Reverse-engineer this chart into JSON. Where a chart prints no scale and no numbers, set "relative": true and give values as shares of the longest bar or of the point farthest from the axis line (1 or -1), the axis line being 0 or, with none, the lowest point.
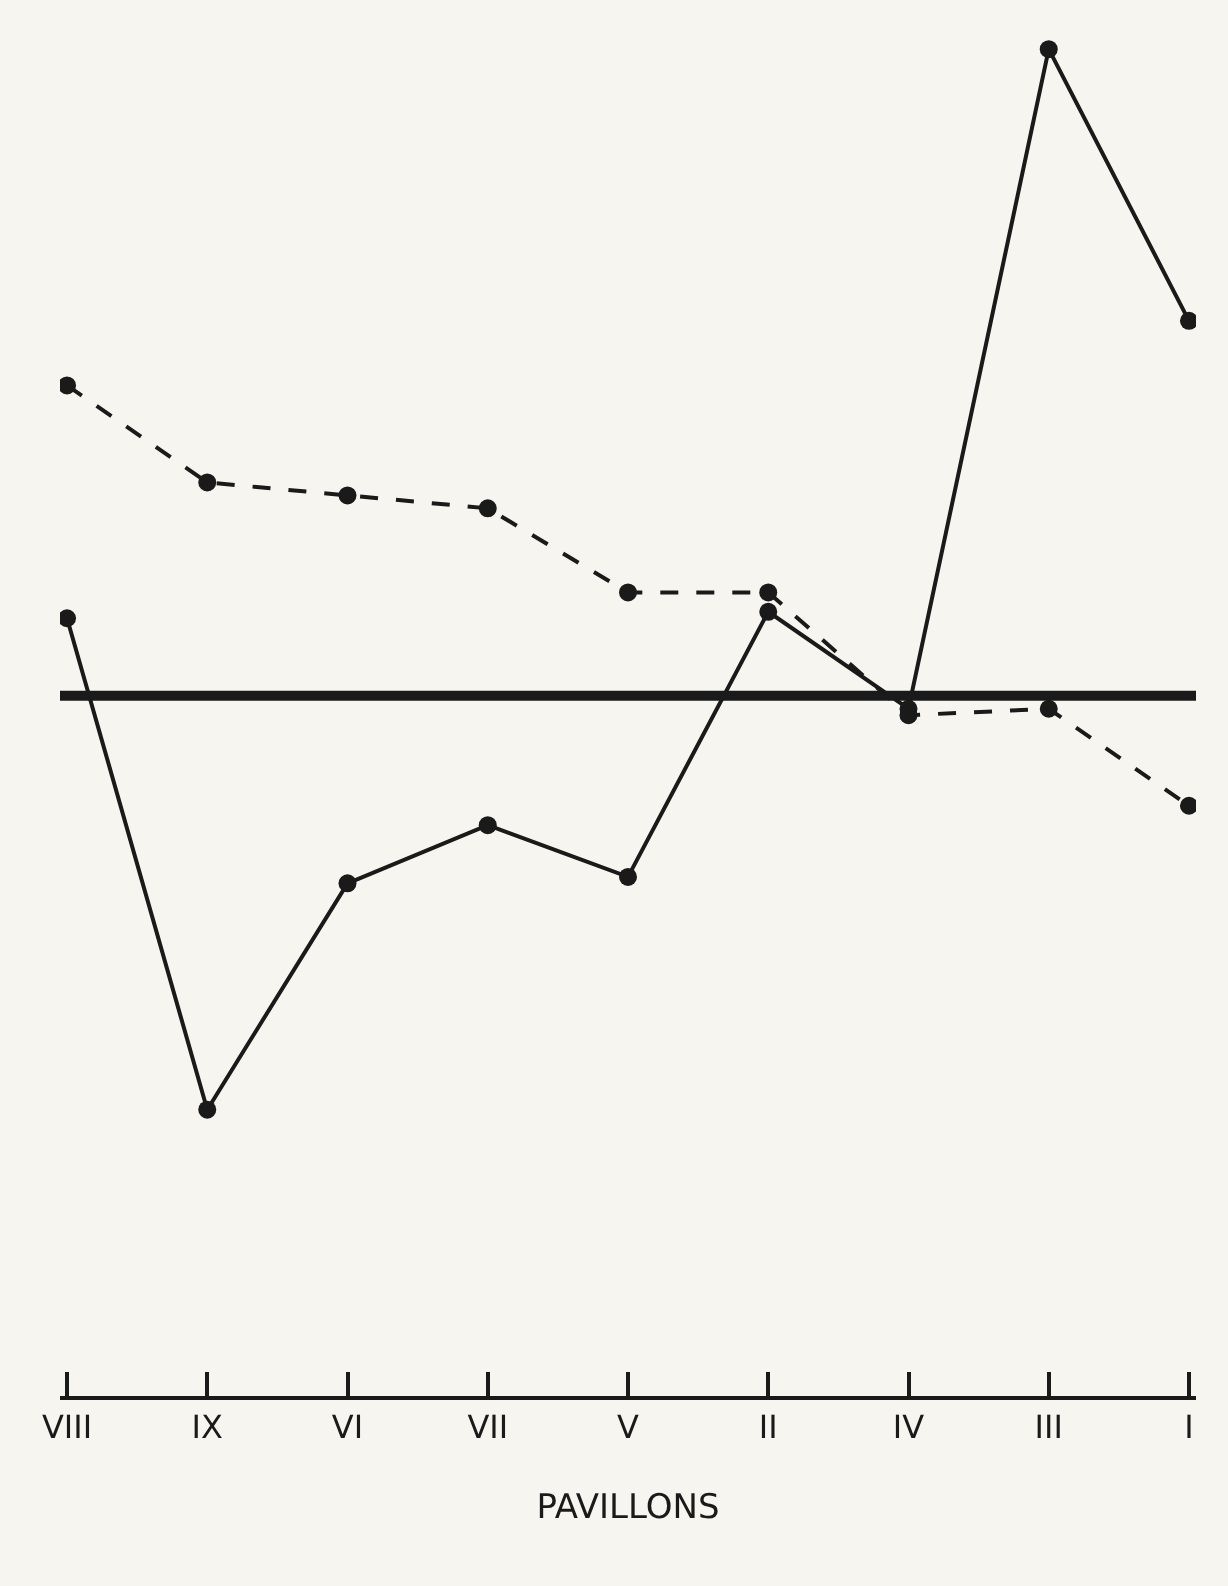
{
  "chart_data": {
    "type": "line",
    "relative": true,
    "xlabel": "PAVILLONS",
    "categories": [
      "VIII",
      "IX",
      "VI",
      "VII",
      "V",
      "II",
      "IV",
      "III",
      "I"
    ],
    "series": [
      {
        "color": "#1a1a1a",
        "line_style": "solid",
        "values": [
          0.12,
          -0.64,
          -0.29,
          -0.2,
          -0.28,
          0.13,
          -0.02,
          1,
          0.58
        ]
      },
      {
        "color": "#1a1a1a",
        "line_style": "dashed",
        "values": [
          0.48,
          0.33,
          0.31,
          0.29,
          0.16,
          0.16,
          -0.03,
          -0.02,
          -0.17
        ]
      }
    ],
    "ref_lines": [
      {
        "axis": "y",
        "value": 0,
        "color": "#1a1a1a"
      }
    ],
    "marker": "circle",
    "grid": false
  }
}
